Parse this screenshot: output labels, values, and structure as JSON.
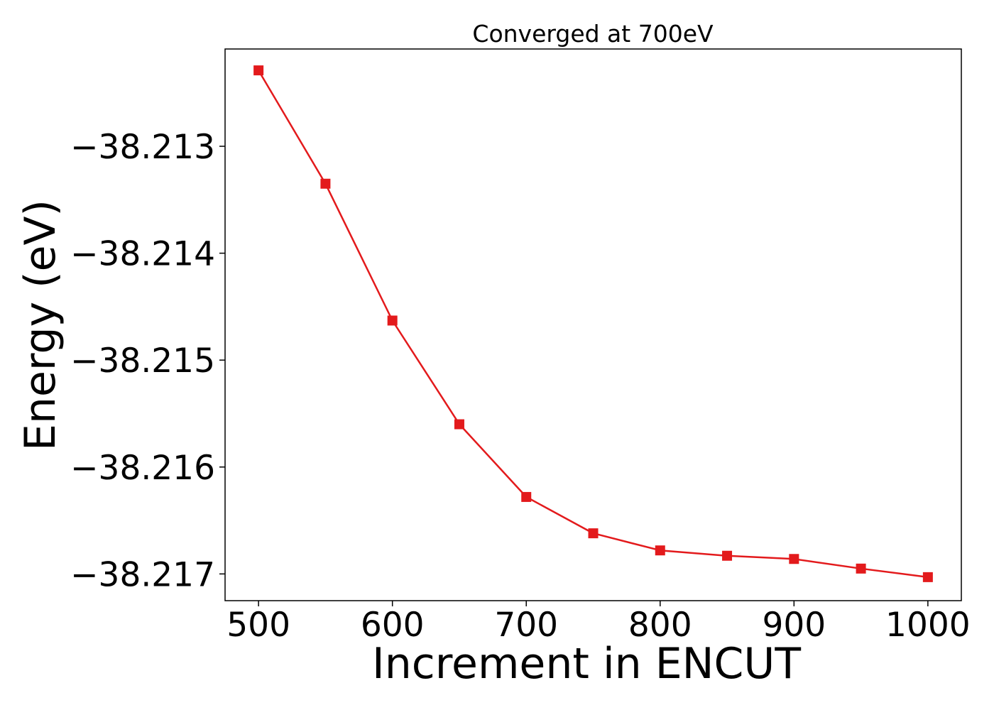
{
  "chart_data": {
    "type": "line",
    "title": "Converged at 700eV",
    "xlabel": "Increment in ENCUT",
    "ylabel": "Energy (eV)",
    "xlim": [
      475,
      1025
    ],
    "ylim": [
      -38.21725,
      -38.21209
    ],
    "x_ticks": [
      500,
      600,
      700,
      800,
      900,
      1000
    ],
    "x_tick_labels": [
      "500",
      "600",
      "700",
      "800",
      "900",
      "1000"
    ],
    "y_ticks": [
      -38.213,
      -38.214,
      -38.215,
      -38.216,
      -38.217
    ],
    "y_tick_labels": [
      "−38.213",
      "−38.214",
      "−38.215",
      "−38.216",
      "−38.217"
    ],
    "grid": false,
    "legend": "none",
    "series": [
      {
        "color": "#e31a1c",
        "marker": "square",
        "x": [
          500,
          550,
          600,
          650,
          700,
          750,
          800,
          850,
          900,
          950,
          1000
        ],
        "y": [
          -38.21229,
          -38.21335,
          -38.21463,
          -38.2156,
          -38.21628,
          -38.21662,
          -38.21678,
          -38.21683,
          -38.21686,
          -38.21695,
          -38.21703
        ]
      }
    ]
  }
}
